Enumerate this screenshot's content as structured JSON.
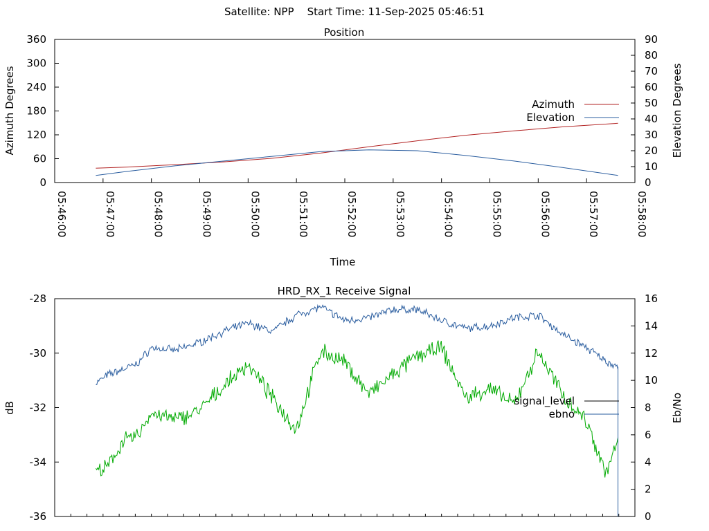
{
  "header": {
    "text": "Satellite: NPP    Start Time: 11-Sep-2025 05:46:51"
  },
  "chart_data": [
    {
      "type": "line",
      "title": "Position",
      "xlabel": "Time",
      "ylabel": "Azimuth Degrees",
      "y2label": "Elevation Degrees",
      "x_ticks": [
        "05:46:00",
        "05:47:00",
        "05:48:00",
        "05:49:00",
        "05:50:00",
        "05:51:00",
        "05:52:00",
        "05:53:00",
        "05:54:00",
        "05:55:00",
        "05:56:00",
        "05:57:00",
        "05:58:00"
      ],
      "ylim": [
        0,
        360
      ],
      "y_ticks": [
        "0",
        "60",
        "120",
        "180",
        "240",
        "300",
        "360"
      ],
      "y2lim": [
        0,
        90
      ],
      "y2_ticks": [
        "0",
        "10",
        "20",
        "30",
        "40",
        "50",
        "60",
        "70",
        "80",
        "90"
      ],
      "legend_position": "right",
      "x_minutes": [
        0.85,
        1.5,
        2.5,
        3.5,
        4.5,
        5.5,
        6.5,
        7.5,
        8.5,
        9.5,
        10.5,
        11.65
      ],
      "series": [
        {
          "name": "Azimuth",
          "axis": "y",
          "color": "#b22222",
          "values": [
            36,
            39,
            45,
            52,
            61,
            74,
            90,
            105,
            119,
            130,
            140,
            149
          ]
        },
        {
          "name": "Elevation",
          "axis": "y2",
          "color": "#2a5d9f",
          "values": [
            4.5,
            7,
            10.5,
            13.5,
            16.5,
            19.5,
            20.5,
            20,
            17,
            13.5,
            9.5,
            4.5
          ]
        }
      ]
    },
    {
      "type": "line",
      "title": "HRD_RX_1 Receive Signal",
      "ylabel": "dB",
      "y2label": "Eb/No",
      "ylim": [
        -36,
        -28
      ],
      "y_ticks": [
        "-28",
        "-30",
        "-32",
        "-34",
        "-36"
      ],
      "y2lim": [
        0,
        16
      ],
      "y2_ticks": [
        "0",
        "2",
        "4",
        "6",
        "8",
        "10",
        "12",
        "14",
        "16"
      ],
      "legend_position": "right",
      "x_minutes": [
        0.85,
        1.1,
        1.4,
        1.7,
        2.0,
        2.5,
        3.0,
        3.5,
        4.0,
        4.5,
        5.0,
        5.5,
        6.0,
        6.5,
        7.0,
        7.5,
        8.0,
        8.5,
        9.0,
        9.5,
        10.0,
        10.5,
        11.0,
        11.4,
        11.65
      ],
      "series": [
        {
          "name": "signal_level",
          "color": "#000000",
          "values": [
            -31.1,
            -30.8,
            -30.6,
            -30.4,
            -29.8,
            -29.9,
            -29.6,
            -29.2,
            -28.9,
            -29.2,
            -28.6,
            -28.3,
            -28.8,
            -28.7,
            -28.4,
            -28.4,
            -28.8,
            -29.1,
            -29.0,
            -28.7,
            -28.6,
            -29.3,
            -29.8,
            -30.3,
            -30.5
          ]
        },
        {
          "name": "ebno",
          "color": "#00aa00",
          "axis": "y2",
          "values": [
            3.3,
            3.6,
            5.5,
            5.9,
            7.6,
            7.1,
            7.8,
            9.6,
            11.2,
            8.7,
            6.4,
            12.2,
            11.3,
            9.0,
            10.4,
            11.8,
            12.4,
            8.7,
            9.4,
            8.2,
            12.1,
            9.0,
            7.0,
            3.2,
            5.5
          ]
        }
      ]
    }
  ]
}
